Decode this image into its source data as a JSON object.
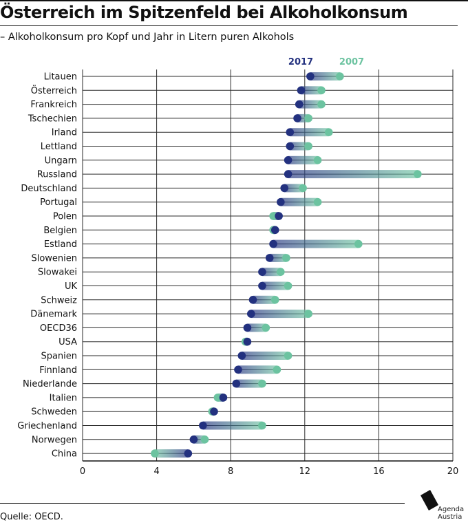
{
  "title": "Österreich im Spitzenfeld bei Alkoholkonsum",
  "subtitle": "– Alkoholkonsum pro Kopf und Jahr in Litern puren Alkohols",
  "source": "Quelle: OECD.",
  "logo": {
    "line1": "Agenda",
    "line2": "Austria"
  },
  "colors": {
    "y2017": "#23317f",
    "y2007": "#6cc3a0",
    "grid": "#2a2a2a"
  },
  "chart_data": {
    "type": "dumbbell",
    "title": "Österreich im Spitzenfeld bei Alkoholkonsum",
    "subtitle": "– Alkoholkonsum pro Kopf und Jahr in Litern puren Alkohols",
    "xlim": [
      0,
      20
    ],
    "x_ticks": [
      0,
      4,
      8,
      12,
      16,
      20
    ],
    "grid": true,
    "legend": "top-right",
    "series": [
      {
        "name": "2017",
        "color": "#23317f"
      },
      {
        "name": "2007",
        "color": "#6cc3a0"
      }
    ],
    "categories": [
      "Litauen",
      "Österreich",
      "Frankreich",
      "Tschechien",
      "Irland",
      "Lettland",
      "Ungarn",
      "Russland",
      "Deutschland",
      "Portugal",
      "Polen",
      "Belgien",
      "Estland",
      "Slowenien",
      "Slowakei",
      "UK",
      "Schweiz",
      "Dänemark",
      "OECD36",
      "USA",
      "Spanien",
      "Finnland",
      "Niederlande",
      "Italien",
      "Schweden",
      "Griechenland",
      "Norwegen",
      "China"
    ],
    "values_2017": [
      12.3,
      11.8,
      11.7,
      11.6,
      11.2,
      11.2,
      11.1,
      11.1,
      10.9,
      10.7,
      10.6,
      10.4,
      10.3,
      10.1,
      9.7,
      9.7,
      9.2,
      9.1,
      8.9,
      8.9,
      8.6,
      8.4,
      8.3,
      7.6,
      7.1,
      6.5,
      6.0,
      5.7
    ],
    "values_2007": [
      13.9,
      12.9,
      12.9,
      12.2,
      13.3,
      12.2,
      12.7,
      18.1,
      11.9,
      12.7,
      10.3,
      10.3,
      14.9,
      11.0,
      10.7,
      11.1,
      10.4,
      12.2,
      9.9,
      8.8,
      11.1,
      10.5,
      9.7,
      7.3,
      7.0,
      9.7,
      6.6,
      3.9
    ]
  }
}
